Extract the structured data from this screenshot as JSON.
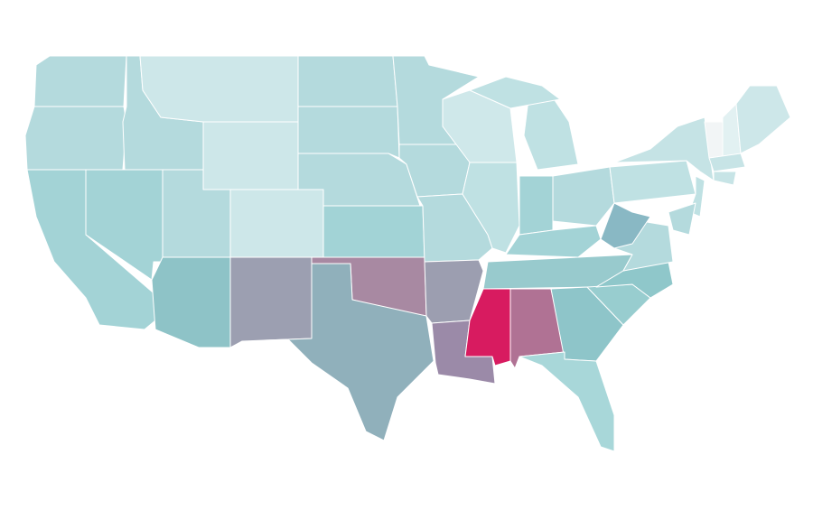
{
  "map": {
    "regions": [
      {
        "color": "#b4dadd"
      },
      {
        "color": "#b4dadd"
      },
      {
        "color": "#a3d3d6"
      },
      {
        "color": "#a3d3d6"
      },
      {
        "color": "#b4dadd"
      },
      {
        "color": "#cde7e9"
      },
      {
        "color": "#cde7e9"
      },
      {
        "color": "#b4dadd"
      },
      {
        "color": "#cde7e9"
      },
      {
        "color": "#8ec3c7"
      },
      {
        "color": "#9c9fb1"
      },
      {
        "color": "#b4dadd"
      },
      {
        "color": "#b4dadd"
      },
      {
        "color": "#b4dadd"
      },
      {
        "color": "#a2d3d6"
      },
      {
        "color": "#a889a2"
      },
      {
        "color": "#90b0bb"
      },
      {
        "color": "#b4dadd"
      },
      {
        "color": "#b4dadd"
      },
      {
        "color": "#b4dadd"
      },
      {
        "color": "#9c9eb0"
      },
      {
        "color": "#9b8aa8"
      },
      {
        "color": "#cfe8ea"
      },
      {
        "color": "#bfe1e3"
      },
      {
        "color": "#bfe1e3"
      },
      {
        "color": "#bfe1e3"
      },
      {
        "color": "#a3d3d6"
      },
      {
        "color": "#b4dadd"
      },
      {
        "color": "#a3d3d6"
      },
      {
        "color": "#98cacd"
      },
      {
        "color": "#d81b60"
      },
      {
        "color": "#b07294"
      },
      {
        "color": "#8ec5c9"
      },
      {
        "color": "#a8d7d9"
      },
      {
        "color": "#98cdcf"
      },
      {
        "color": "#8fc7ca"
      },
      {
        "color": "#b4dadd"
      },
      {
        "color": "#89b8c4"
      },
      {
        "color": "#bfe1e3"
      },
      {
        "color": "#c5e3e5"
      },
      {
        "color": "#f2f5f6"
      },
      {
        "color": "#e2f1f2"
      },
      {
        "color": "#cde7e9"
      },
      {
        "color": "#c7e4e6"
      },
      {
        "color": "#c7e4e6"
      },
      {
        "color": "#bfe1e3"
      },
      {
        "color": "#b4dadd"
      }
    ]
  }
}
